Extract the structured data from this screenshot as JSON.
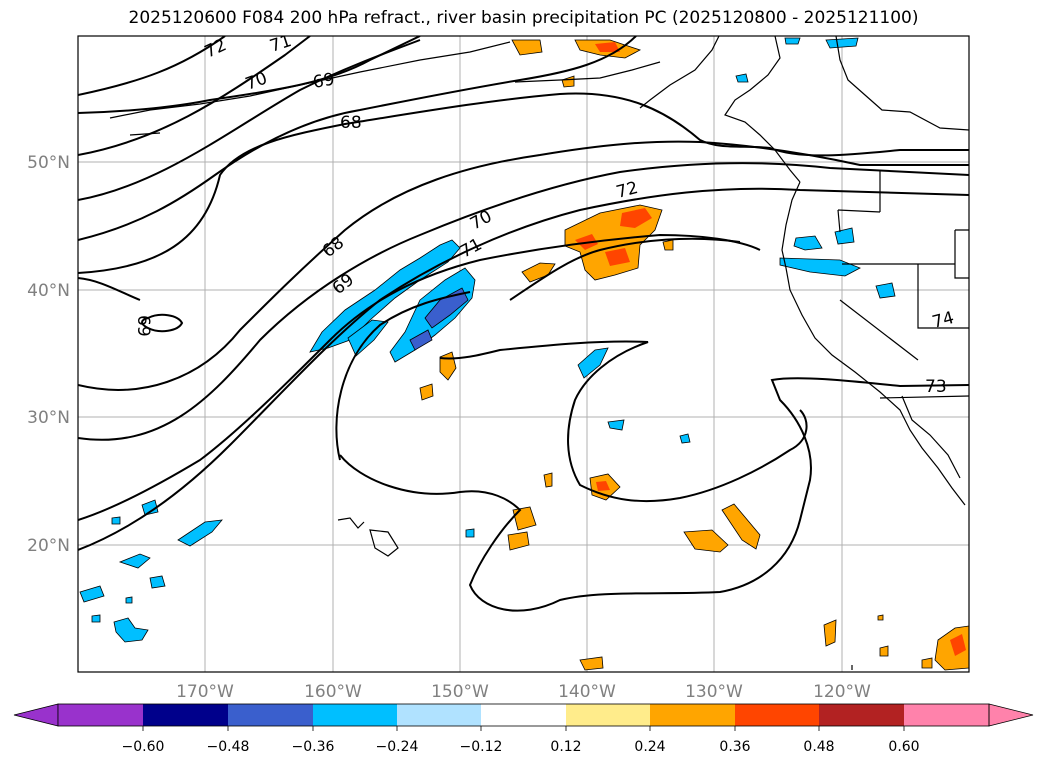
{
  "title": "2025120600 F084 200 hPa refract., river basin precipitation PC (2025120800 - 2025121100)",
  "latitude_ticks": [
    "50°N",
    "40°N",
    "30°N",
    "20°N"
  ],
  "longitude_ticks": [
    "170°W",
    "160°W",
    "150°W",
    "140°W",
    "130°W",
    "120°W"
  ],
  "contour_labels": [
    "72",
    "71",
    "70",
    "69",
    "68",
    "68",
    "69",
    "70",
    "71",
    "72",
    "69",
    "73",
    "74"
  ],
  "colorbar": {
    "colors": [
      "#9932cc",
      "#00008b",
      "#3a5fcd",
      "#00bfff",
      "#b0e2ff",
      "#ffffff",
      "#ffec8b",
      "#ffa500",
      "#ff4500",
      "#b22222",
      "#ff82ab"
    ],
    "tick_labels": [
      "−0.60",
      "−0.48",
      "−0.36",
      "−0.24",
      "−0.12",
      "0.12",
      "0.24",
      "0.36",
      "0.48",
      "0.60"
    ]
  }
}
